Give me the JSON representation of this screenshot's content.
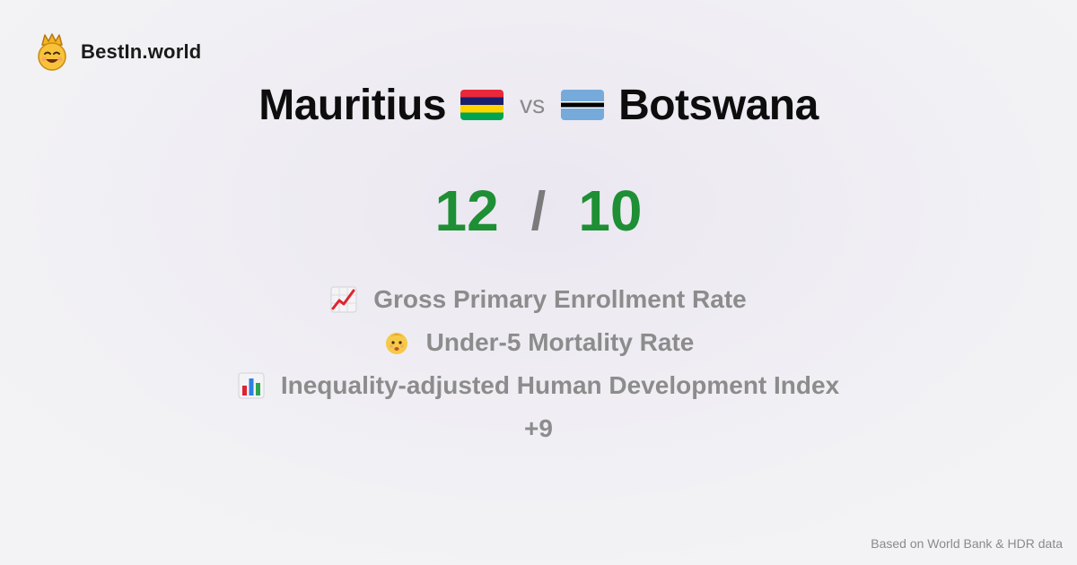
{
  "brand": {
    "name": "BestIn.world",
    "logo_icon": "crowned-smiley-icon"
  },
  "comparison": {
    "left": {
      "name": "Mauritius",
      "flag_icon": "mauritius-flag-icon",
      "flag_colors": [
        "#EA2839",
        "#1A206D",
        "#FFD500",
        "#00A551"
      ],
      "score": "12"
    },
    "vs_label": "vs",
    "right": {
      "name": "Botswana",
      "flag_icon": "botswana-flag-icon",
      "flag_colors": [
        "#75AADB",
        "#FFFFFF",
        "#000000"
      ],
      "score": "10"
    },
    "score_separator": "/"
  },
  "metrics": [
    {
      "icon": "chart-increasing-icon",
      "label": "Gross Primary Enrollment Rate"
    },
    {
      "icon": "baby-icon",
      "label": "Under-5 Mortality Rate"
    },
    {
      "icon": "bar-chart-icon",
      "label": "Inequality-adjusted Human Development Index"
    }
  ],
  "more_label": "+9",
  "footer": {
    "source": "Based on World Bank & HDR data"
  },
  "colors": {
    "score_green": "#1E8F34",
    "muted_text": "#8C8C8C"
  }
}
